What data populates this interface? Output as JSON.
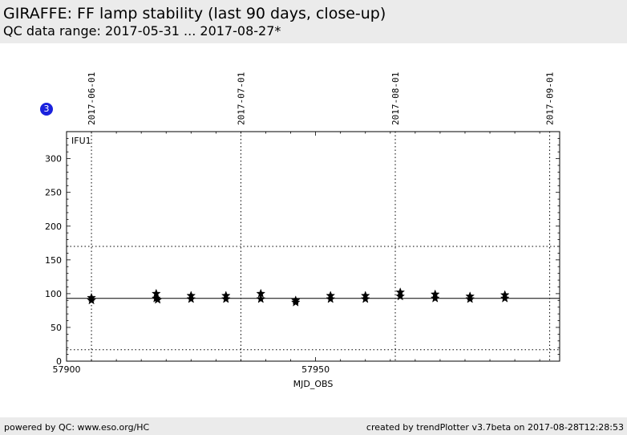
{
  "header": {
    "title": "GIRAFFE: FF lamp stability (last 90 days, close-up)",
    "subtitle": "QC data range: 2017-05-31 ... 2017-08-27*"
  },
  "badge": {
    "label": "3",
    "color": "#1a22dd"
  },
  "footer": {
    "left": "powered by QC: www.eso.org/HC",
    "right": "created by trendPlotter v3.7beta on 2017-08-28T12:28:53"
  },
  "chart_data": {
    "type": "scatter",
    "panel_label": "IFU1",
    "xlabel": "MJD_OBS",
    "ylabel": "",
    "xlim": [
      57900,
      57999
    ],
    "ylim": [
      0,
      340
    ],
    "x_ticks": [
      57900,
      57950
    ],
    "y_ticks": [
      0,
      50,
      100,
      150,
      200,
      250,
      300
    ],
    "marker": "star",
    "grid": false,
    "date_markers": [
      {
        "mjd": 57905,
        "label": "2017-06-01"
      },
      {
        "mjd": 57935,
        "label": "2017-07-01"
      },
      {
        "mjd": 57966,
        "label": "2017-08-01"
      },
      {
        "mjd": 57997,
        "label": "2017-09-01"
      }
    ],
    "reference_lines": [
      {
        "y": 93,
        "style": "solid"
      },
      {
        "y": 170,
        "style": "dotted"
      },
      {
        "y": 17,
        "style": "dotted"
      }
    ],
    "points": [
      {
        "x": 57905,
        "y": 94
      },
      {
        "x": 57905,
        "y": 90
      },
      {
        "x": 57918,
        "y": 100
      },
      {
        "x": 57918,
        "y": 93
      },
      {
        "x": 57918.3,
        "y": 91
      },
      {
        "x": 57925,
        "y": 97
      },
      {
        "x": 57925,
        "y": 92
      },
      {
        "x": 57932,
        "y": 97
      },
      {
        "x": 57932,
        "y": 92
      },
      {
        "x": 57939,
        "y": 100
      },
      {
        "x": 57939,
        "y": 92
      },
      {
        "x": 57946,
        "y": 90
      },
      {
        "x": 57946,
        "y": 87
      },
      {
        "x": 57953,
        "y": 97
      },
      {
        "x": 57953,
        "y": 92
      },
      {
        "x": 57960,
        "y": 97
      },
      {
        "x": 57960,
        "y": 92
      },
      {
        "x": 57967,
        "y": 102
      },
      {
        "x": 57967,
        "y": 96
      },
      {
        "x": 57974,
        "y": 99
      },
      {
        "x": 57974,
        "y": 93
      },
      {
        "x": 57981,
        "y": 96
      },
      {
        "x": 57981,
        "y": 92
      },
      {
        "x": 57988,
        "y": 98
      },
      {
        "x": 57988,
        "y": 93
      }
    ]
  }
}
